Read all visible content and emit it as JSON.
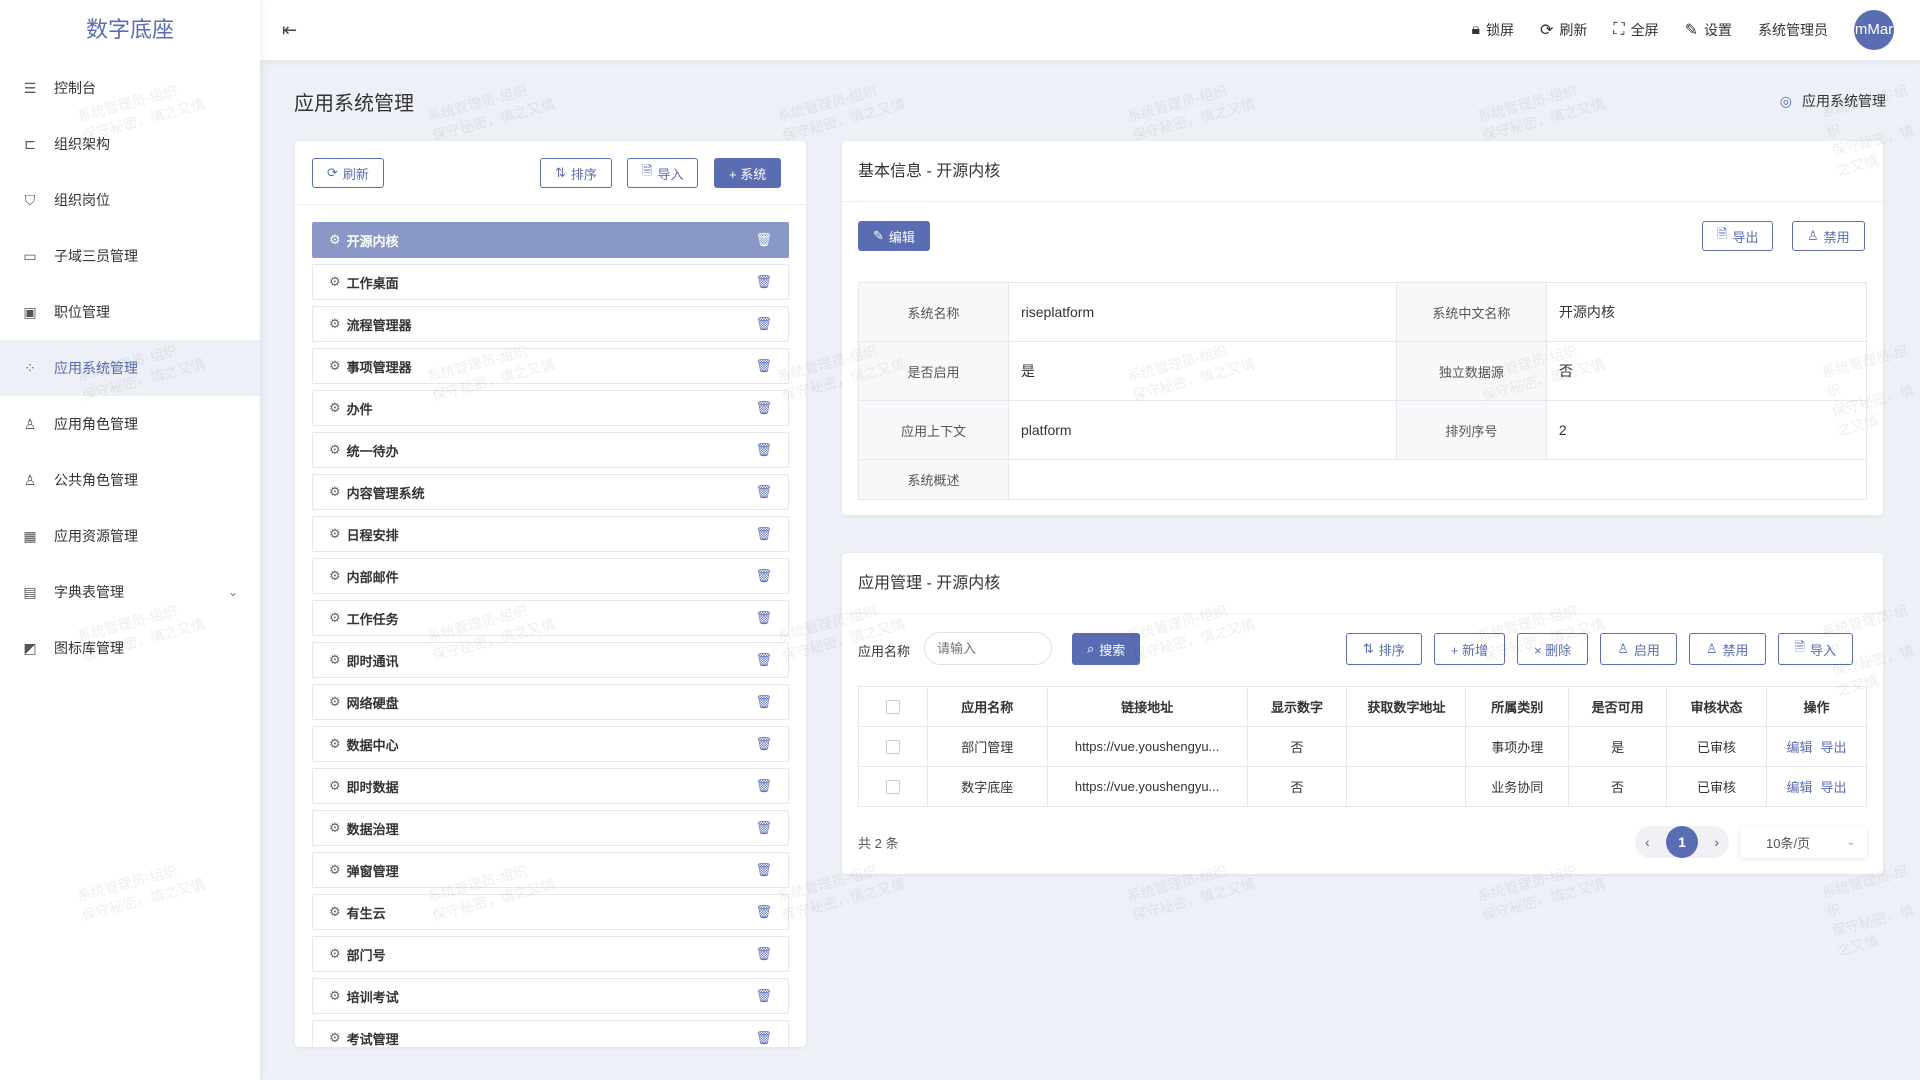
{
  "app": {
    "title": "数字底座"
  },
  "header": {
    "items": [
      {
        "icon": "lock-icon",
        "label": "锁屏"
      },
      {
        "icon": "refresh-icon",
        "label": "刷新"
      },
      {
        "icon": "fullscreen-icon",
        "label": "全屏"
      },
      {
        "icon": "settings-icon",
        "label": "设置"
      }
    ],
    "user": "系统管理员",
    "avatar": "mMar"
  },
  "sidebar": {
    "items": [
      {
        "label": "控制台",
        "icon": "sliders-icon"
      },
      {
        "label": "组织架构",
        "icon": "org-tree-icon"
      },
      {
        "label": "组织岗位",
        "icon": "badge-icon"
      },
      {
        "label": "子域三员管理",
        "icon": "monitor-icon"
      },
      {
        "label": "职位管理",
        "icon": "id-card-icon"
      },
      {
        "label": "应用系统管理",
        "icon": "apps-icon",
        "active": true
      },
      {
        "label": "应用角色管理",
        "icon": "user-role-icon"
      },
      {
        "label": "公共角色管理",
        "icon": "user-role-icon"
      },
      {
        "label": "应用资源管理",
        "icon": "grid-icon"
      },
      {
        "label": "字典表管理",
        "icon": "book-icon",
        "expandable": true
      },
      {
        "label": "图标库管理",
        "icon": "image-icon"
      }
    ]
  },
  "page": {
    "title": "应用系统管理",
    "breadcrumb": "应用系统管理"
  },
  "left": {
    "refresh": "刷新",
    "sort": "排序",
    "import": "导入",
    "add": "+ 系统",
    "items": [
      "开源内核",
      "工作桌面",
      "流程管理器",
      "事项管理器",
      "办件",
      "统一待办",
      "内容管理系统",
      "日程安排",
      "内部邮件",
      "工作任务",
      "即时通讯",
      "网络硬盘",
      "数据中心",
      "即时数据",
      "数据治理",
      "弹窗管理",
      "有生云",
      "部门号",
      "培训考试",
      "考试管理"
    ],
    "selected": "开源内核"
  },
  "basic": {
    "title": "基本信息 - 开源内核",
    "edit": "编辑",
    "export": "导出",
    "disable": "禁用",
    "rows": [
      [
        {
          "label": "系统名称",
          "value": "riseplatform"
        },
        {
          "label": "系统中文名称",
          "value": "开源内核"
        }
      ],
      [
        {
          "label": "是否启用",
          "value": "是"
        },
        {
          "label": "独立数据源",
          "value": "否"
        }
      ],
      [
        {
          "label": "应用上下文",
          "value": "platform"
        },
        {
          "label": "排列序号",
          "value": "2"
        }
      ]
    ],
    "desc_label": "系统概述",
    "desc_value": ""
  },
  "apps": {
    "title": "应用管理 - 开源内核",
    "filter_label": "应用名称",
    "placeholder": "请输入",
    "search": "搜索",
    "buttons": [
      "排序",
      "+ 新增",
      "× 删除",
      "启用",
      "禁用",
      "导入"
    ],
    "columns": [
      "应用名称",
      "链接地址",
      "显示数字",
      "获取数字地址",
      "所属类别",
      "是否可用",
      "审核状态",
      "操作"
    ],
    "rows": [
      [
        "部门管理",
        "https://vue.youshengyu...",
        "否",
        "",
        "事项办理",
        "是",
        "已审核"
      ],
      [
        "数字底座",
        "https://vue.youshengyu...",
        "否",
        "",
        "业务协同",
        "否",
        "已审核"
      ]
    ],
    "actions": [
      "编辑",
      "导出"
    ],
    "total": "共 2 条",
    "page": "1",
    "page_size": "10条/页"
  },
  "watermark": [
    "系统管理员-组织",
    "保守秘密，慎之又慎"
  ],
  "colors": {
    "accent": "#5a6db3",
    "selected_item": "#8a98c8",
    "background": "#edf0f6"
  }
}
